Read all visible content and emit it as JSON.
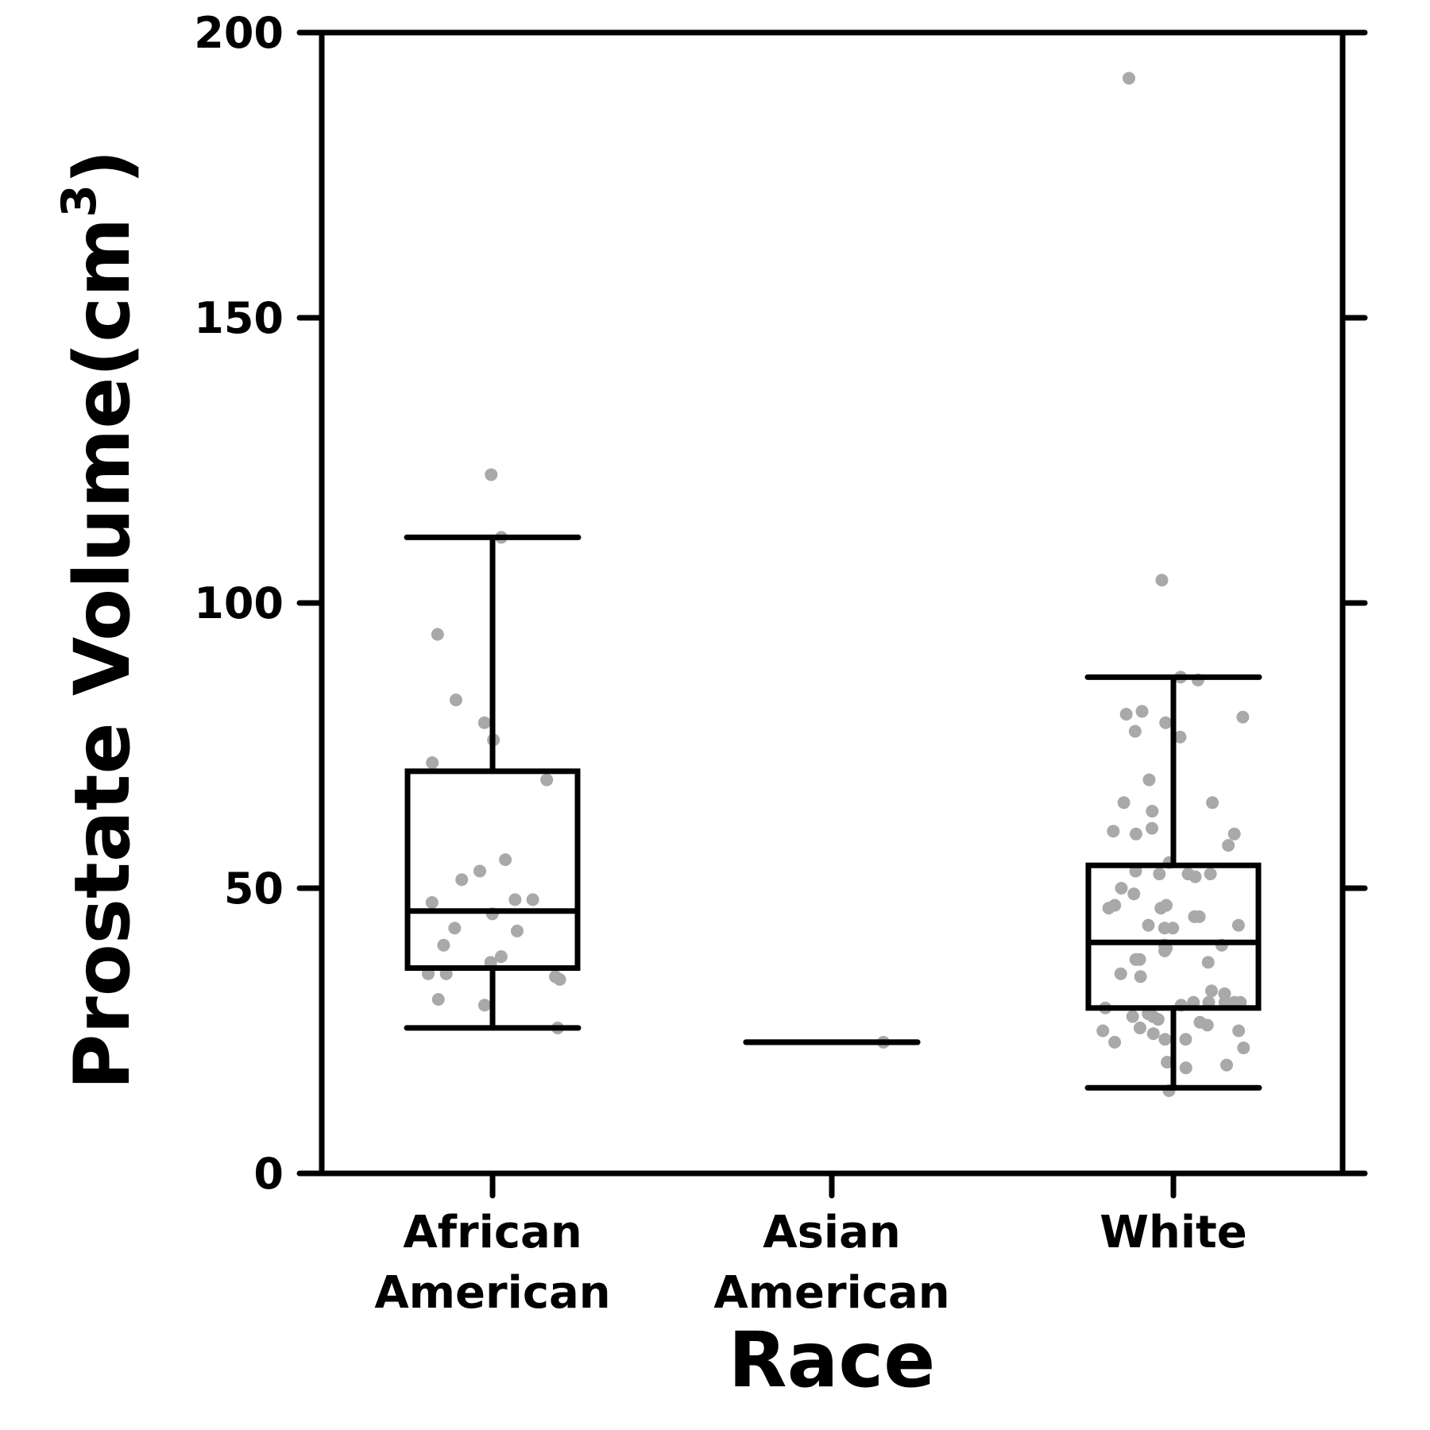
{
  "chart_data": {
    "type": "box",
    "xlabel": "Race",
    "ylabel_main": "Prostate Volume(cm",
    "ylabel_sup": "3",
    "ylabel_close": ")",
    "ylim": [
      0,
      200
    ],
    "yticks": [
      0,
      50,
      100,
      150,
      200
    ],
    "ytick_labels": [
      "0",
      "50",
      "100",
      "150",
      "200"
    ],
    "grid": false,
    "colors": {
      "box": "#000000",
      "points": "#a9a9a9"
    },
    "categories": [
      {
        "label_lines": [
          "African",
          "American"
        ],
        "position": 1
      },
      {
        "label_lines": [
          "Asian",
          "American"
        ],
        "position": 2
      },
      {
        "label_lines": [
          "White"
        ],
        "position": 3
      }
    ],
    "boxes": [
      {
        "whisker_low": 25.5,
        "q1": 36,
        "median": 46,
        "q3": 70.5,
        "whisker_high": 111.5
      },
      {
        "whisker_low": 23,
        "q1": 23,
        "median": 23,
        "q3": 23,
        "whisker_high": 23
      },
      {
        "whisker_low": 15,
        "q1": 29,
        "median": 40.5,
        "q3": 54,
        "whisker_high": 87
      }
    ],
    "points": [
      {
        "position": 1,
        "y": [
          122.5,
          111.5,
          94.5,
          83,
          79,
          76,
          72,
          69,
          55,
          53,
          51.5,
          48,
          48,
          47.5,
          45.5,
          43,
          42.5,
          40,
          38,
          37,
          35,
          35,
          34.5,
          34,
          30.5,
          29.5,
          25.5
        ]
      },
      {
        "position": 2,
        "y": [
          23
        ]
      },
      {
        "position": 3,
        "y": [
          192,
          104,
          87,
          86.5,
          81,
          80.5,
          80,
          79,
          77.5,
          76.5,
          69,
          65,
          65,
          63.5,
          60.5,
          60,
          59.5,
          59.5,
          57.5,
          54.5,
          53,
          52.5,
          52.5,
          52.5,
          52,
          50,
          49,
          47,
          47,
          46.5,
          46.5,
          45,
          45,
          43.5,
          43.5,
          43,
          43,
          40,
          40,
          39.5,
          39,
          37.5,
          37.5,
          37,
          35,
          34.5,
          32,
          31.5,
          30,
          30,
          30,
          30,
          30,
          29.5,
          29,
          28,
          27.5,
          27.5,
          27,
          26.5,
          26,
          25.5,
          25,
          25,
          24.5,
          23.5,
          23.5,
          23,
          22,
          19.5,
          19,
          18.5,
          14.5
        ]
      }
    ]
  }
}
